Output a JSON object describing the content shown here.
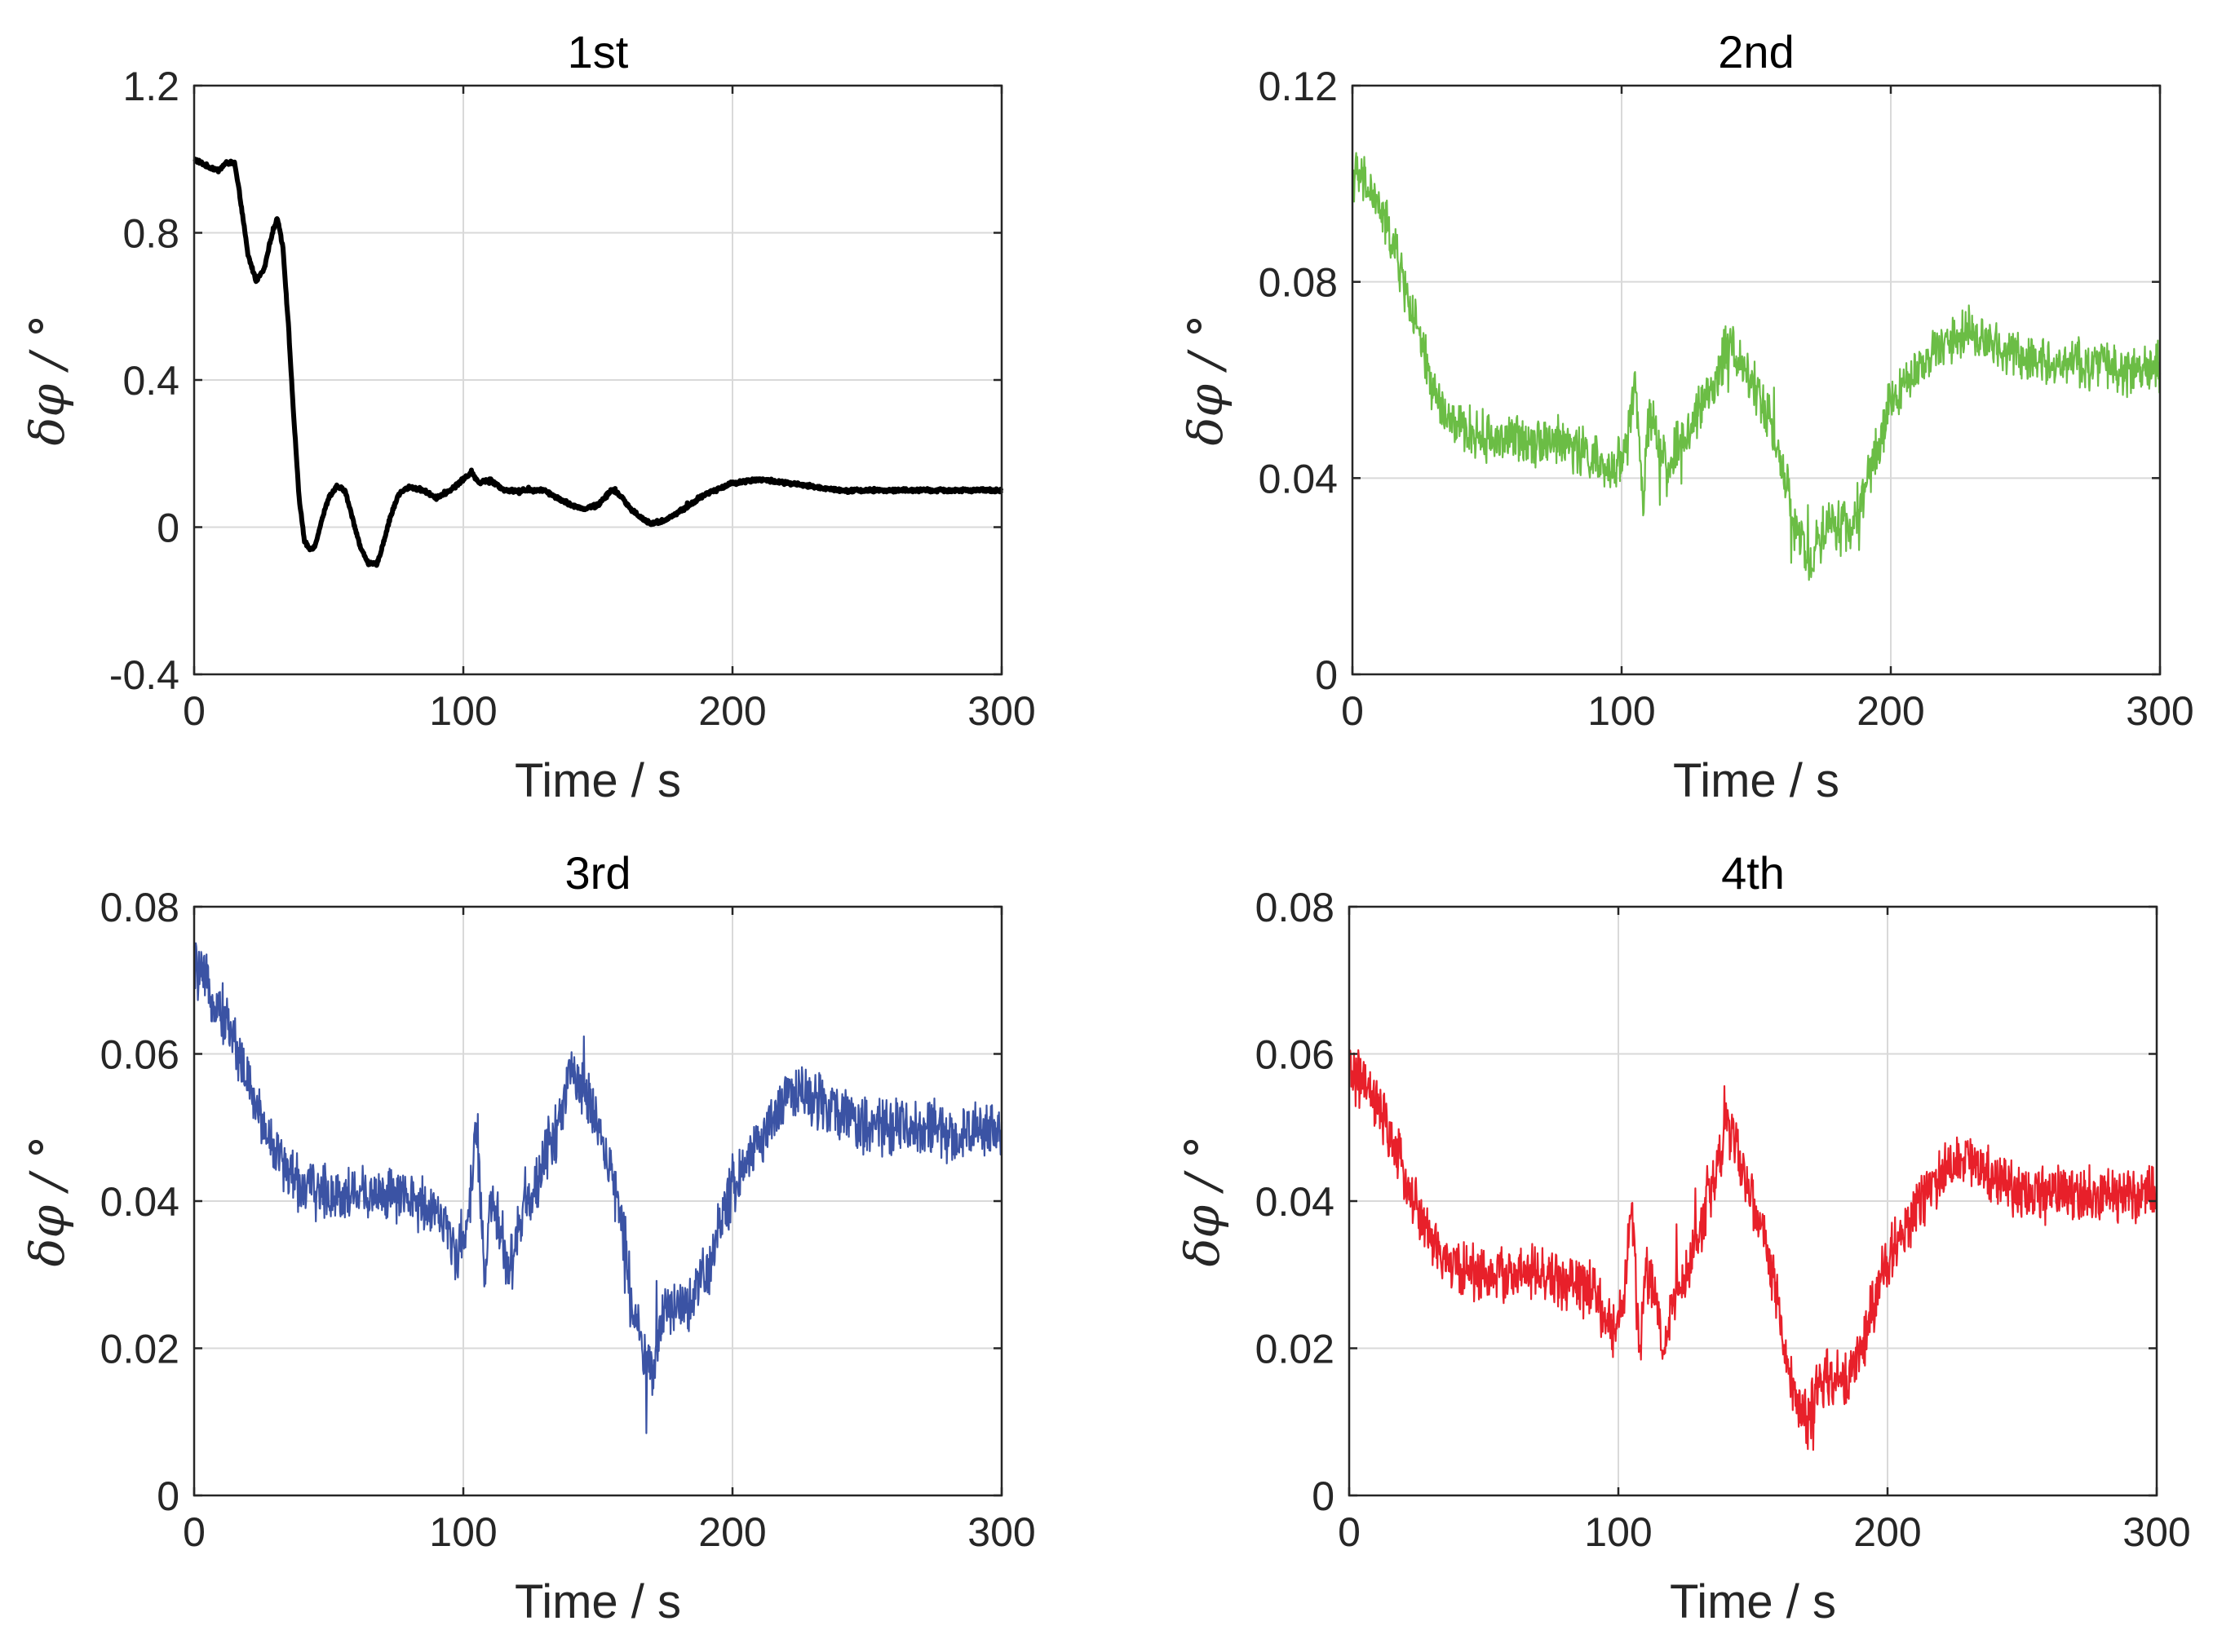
{
  "chart_data": [
    {
      "type": "line",
      "title": "1st",
      "xlabel": "Time / s",
      "ylabel": "δφ / °",
      "xlim": [
        0,
        300
      ],
      "ylim": [
        -0.4,
        1.2
      ],
      "xticks": [
        "0",
        "100",
        "200",
        "300"
      ],
      "yticks": [
        "1.2",
        "0.8",
        "0.4",
        "0",
        "-0.4"
      ],
      "color": "#000000",
      "noise": 0.004,
      "series": [
        {
          "name": "1st",
          "x": [
            0,
            5,
            9,
            12,
            15,
            17,
            20,
            23,
            26,
            29,
            31,
            33,
            35,
            37,
            39,
            41,
            43,
            45,
            47,
            50,
            53,
            56,
            59,
            62,
            65,
            68,
            70,
            73,
            76,
            80,
            85,
            90,
            95,
            100,
            103,
            106,
            110,
            115,
            120,
            125,
            130,
            140,
            145,
            150,
            155,
            158,
            162,
            167,
            170,
            175,
            180,
            190,
            200,
            210,
            220,
            230,
            240,
            250,
            260,
            270,
            280,
            290,
            300
          ],
          "y": [
            1.0,
            0.98,
            0.97,
            0.99,
            0.99,
            0.9,
            0.74,
            0.67,
            0.7,
            0.8,
            0.84,
            0.76,
            0.55,
            0.3,
            0.08,
            -0.04,
            -0.06,
            -0.05,
            0.01,
            0.08,
            0.11,
            0.1,
            0.02,
            -0.06,
            -0.1,
            -0.1,
            -0.05,
            0.03,
            0.09,
            0.11,
            0.1,
            0.08,
            0.1,
            0.13,
            0.15,
            0.12,
            0.13,
            0.1,
            0.1,
            0.1,
            0.1,
            0.06,
            0.05,
            0.06,
            0.1,
            0.09,
            0.05,
            0.02,
            0.01,
            0.02,
            0.04,
            0.09,
            0.12,
            0.13,
            0.12,
            0.11,
            0.1,
            0.1,
            0.1,
            0.1,
            0.1,
            0.1,
            0.1
          ]
        }
      ]
    },
    {
      "type": "line",
      "title": "2nd",
      "xlabel": "Time / s",
      "ylabel": "δφ / °",
      "xlim": [
        0,
        300
      ],
      "ylim": [
        0,
        0.12
      ],
      "xticks": [
        "0",
        "100",
        "200",
        "300"
      ],
      "yticks": [
        "0.12",
        "0.08",
        "0.04",
        "0"
      ],
      "color": "#6bbd45",
      "noise": 0.004,
      "series": [
        {
          "name": "2nd",
          "x": [
            0,
            5,
            10,
            15,
            20,
            25,
            30,
            35,
            40,
            50,
            60,
            70,
            80,
            90,
            95,
            98,
            102,
            105,
            108,
            110,
            113,
            117,
            120,
            125,
            130,
            135,
            140,
            145,
            150,
            155,
            160,
            163,
            166,
            170,
            175,
            180,
            185,
            190,
            195,
            200,
            210,
            220,
            228,
            235,
            245,
            255,
            265,
            275,
            285,
            300
          ],
          "y": [
            0.102,
            0.1,
            0.095,
            0.088,
            0.078,
            0.068,
            0.058,
            0.052,
            0.05,
            0.048,
            0.048,
            0.048,
            0.047,
            0.044,
            0.04,
            0.043,
            0.047,
            0.06,
            0.035,
            0.052,
            0.05,
            0.04,
            0.046,
            0.05,
            0.056,
            0.06,
            0.068,
            0.063,
            0.058,
            0.052,
            0.043,
            0.033,
            0.028,
            0.022,
            0.03,
            0.03,
            0.03,
            0.038,
            0.045,
            0.056,
            0.062,
            0.068,
            0.07,
            0.068,
            0.066,
            0.064,
            0.064,
            0.063,
            0.062,
            0.063
          ]
        }
      ]
    },
    {
      "type": "line",
      "title": "3rd",
      "xlabel": "Time / s",
      "ylabel": "δφ / °",
      "xlim": [
        0,
        300
      ],
      "ylim": [
        0,
        0.08
      ],
      "xticks": [
        "0",
        "100",
        "200",
        "300"
      ],
      "yticks": [
        "0.08",
        "0.06",
        "0.04",
        "0.02",
        "0"
      ],
      "color": "#3b53a4",
      "noise": 0.003,
      "series": [
        {
          "name": "3rd",
          "x": [
            0,
            5,
            10,
            15,
            20,
            25,
            30,
            35,
            40,
            50,
            60,
            70,
            80,
            90,
            95,
            98,
            102,
            105,
            108,
            110,
            113,
            117,
            120,
            125,
            130,
            135,
            140,
            145,
            150,
            155,
            160,
            163,
            166,
            170,
            175,
            180,
            185,
            190,
            195,
            200,
            210,
            220,
            228,
            235,
            245,
            255,
            265,
            275,
            285,
            300
          ],
          "y": [
            0.072,
            0.069,
            0.066,
            0.062,
            0.056,
            0.051,
            0.047,
            0.044,
            0.042,
            0.041,
            0.041,
            0.041,
            0.04,
            0.039,
            0.035,
            0.033,
            0.038,
            0.05,
            0.028,
            0.04,
            0.038,
            0.03,
            0.036,
            0.04,
            0.046,
            0.05,
            0.058,
            0.055,
            0.05,
            0.044,
            0.035,
            0.026,
            0.022,
            0.016,
            0.026,
            0.026,
            0.026,
            0.03,
            0.036,
            0.042,
            0.048,
            0.054,
            0.055,
            0.053,
            0.051,
            0.05,
            0.05,
            0.05,
            0.049,
            0.05
          ]
        }
      ]
    },
    {
      "type": "line",
      "title": "4th",
      "xlabel": "Time / s",
      "ylabel": "δφ / °",
      "xlim": [
        0,
        300
      ],
      "ylim": [
        0,
        0.08
      ],
      "xticks": [
        "0",
        "100",
        "200",
        "300"
      ],
      "yticks": [
        "0.08",
        "0.06",
        "0.04",
        "0.02",
        "0"
      ],
      "color": "#e8202a",
      "noise": 0.003,
      "series": [
        {
          "name": "4th",
          "x": [
            0,
            5,
            10,
            15,
            20,
            25,
            30,
            35,
            40,
            50,
            60,
            70,
            80,
            90,
            95,
            98,
            102,
            105,
            108,
            110,
            113,
            117,
            120,
            125,
            130,
            135,
            140,
            145,
            150,
            155,
            160,
            163,
            166,
            170,
            175,
            180,
            185,
            190,
            195,
            200,
            210,
            220,
            228,
            235,
            245,
            255,
            265,
            275,
            285,
            300
          ],
          "y": [
            0.058,
            0.056,
            0.053,
            0.049,
            0.044,
            0.039,
            0.035,
            0.032,
            0.031,
            0.03,
            0.03,
            0.03,
            0.029,
            0.028,
            0.024,
            0.022,
            0.027,
            0.04,
            0.018,
            0.03,
            0.028,
            0.02,
            0.026,
            0.03,
            0.036,
            0.042,
            0.05,
            0.046,
            0.04,
            0.034,
            0.025,
            0.016,
            0.013,
            0.01,
            0.016,
            0.016,
            0.016,
            0.02,
            0.026,
            0.032,
            0.038,
            0.044,
            0.046,
            0.044,
            0.042,
            0.041,
            0.041,
            0.041,
            0.04,
            0.041
          ]
        }
      ]
    }
  ]
}
